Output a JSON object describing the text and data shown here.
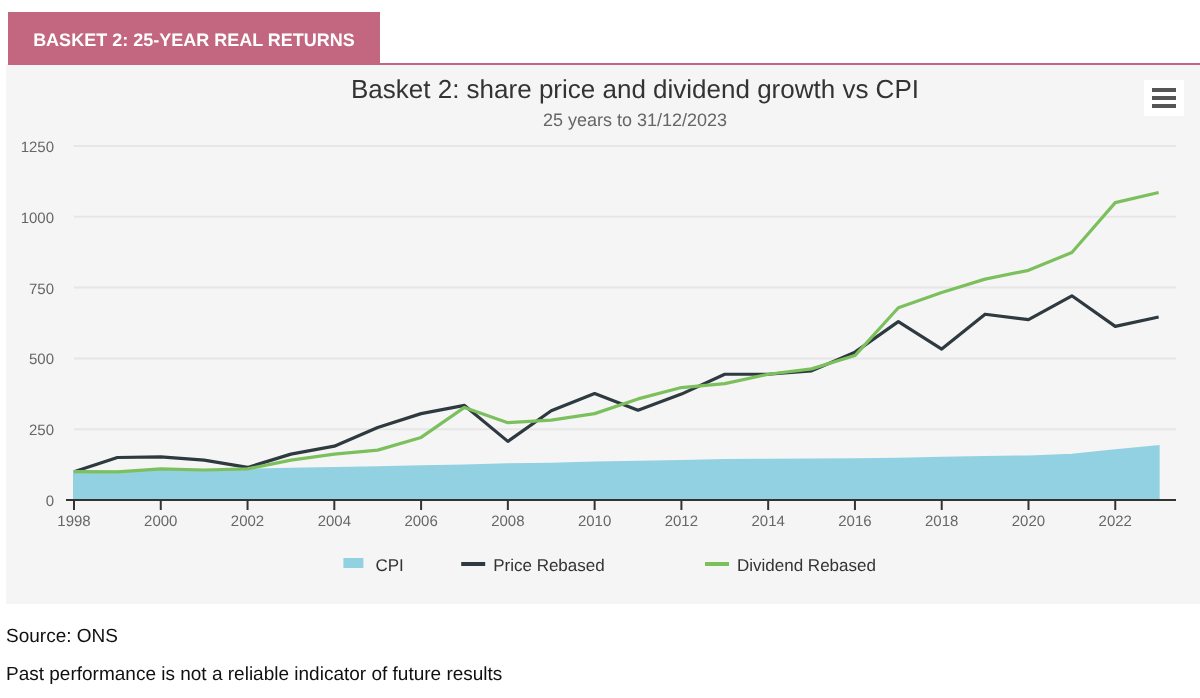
{
  "chart_data": {
    "type": "line",
    "title": "Basket 2: share price and dividend growth vs CPI",
    "subtitle": "25 years to 31/12/2023",
    "x": [
      1998,
      1999,
      2000,
      2001,
      2002,
      2003,
      2004,
      2005,
      2006,
      2007,
      2008,
      2009,
      2010,
      2011,
      2012,
      2013,
      2014,
      2015,
      2016,
      2017,
      2018,
      2019,
      2020,
      2021,
      2022,
      2023
    ],
    "xlim": [
      1998,
      2023.4
    ],
    "xticks": [
      1998,
      2000,
      2002,
      2004,
      2006,
      2008,
      2010,
      2012,
      2014,
      2016,
      2018,
      2020,
      2022
    ],
    "ylim": [
      0,
      1250
    ],
    "yticks": [
      0,
      250,
      500,
      750,
      1000,
      1250
    ],
    "grid": "y",
    "legend": "bottom",
    "marker": "none",
    "line_style": "solid",
    "series": [
      {
        "name": "CPI",
        "type": "area",
        "color": "#92d1e1",
        "values": [
          100,
          101,
          103,
          105,
          107,
          110,
          113,
          116,
          119,
          122,
          126,
          128,
          132,
          135,
          138,
          141,
          142,
          143,
          144,
          146,
          149,
          152,
          154,
          160,
          176,
          190
        ]
      },
      {
        "name": "Price Rebased",
        "color": "#2e3a40",
        "values": [
          100,
          150,
          152,
          141,
          115,
          162,
          190,
          256,
          305,
          334,
          207,
          315,
          376,
          317,
          374,
          444,
          444,
          456,
          522,
          630,
          533,
          656,
          637,
          721,
          613,
          646
        ]
      },
      {
        "name": "Dividend Rebased",
        "color": "#7cc05e",
        "values": [
          100,
          99,
          110,
          106,
          110,
          141,
          162,
          176,
          221,
          327,
          273,
          282,
          305,
          357,
          397,
          411,
          444,
          463,
          510,
          679,
          733,
          780,
          811,
          874,
          1050,
          1086
        ]
      }
    ],
    "annotations": [
      "BASKET 2: 25-YEAR REAL RETURNS",
      "Source: ONS",
      "Past performance is not a reliable indicator of future results"
    ]
  }
}
